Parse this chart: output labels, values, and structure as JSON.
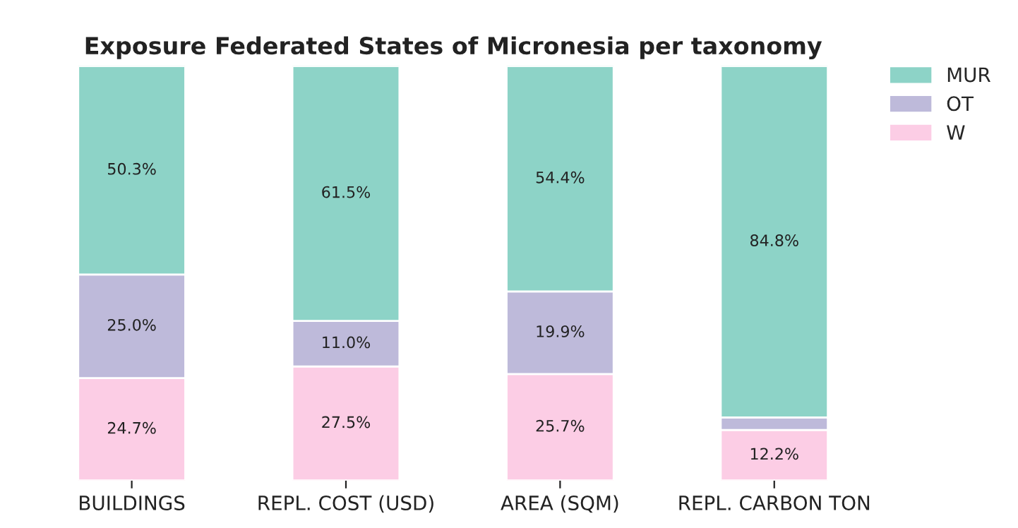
{
  "chart_data": {
    "type": "bar",
    "title": "Exposure Federated States of Micronesia per taxonomy",
    "categories": [
      "BUILDINGS",
      "REPL. COST (USD)",
      "AREA (SQM)",
      "REPL. CARBON TON"
    ],
    "stacked": true,
    "ylim": [
      0,
      100
    ],
    "tick_labels": "x",
    "grid": false,
    "legend": "top right",
    "series": [
      {
        "name": "W",
        "color": "#fccde5",
        "values": [
          24.7,
          27.5,
          25.7,
          12.2
        ],
        "value_labels": [
          "24.7%",
          "27.5%",
          "25.7%",
          "12.2%"
        ]
      },
      {
        "name": "OT",
        "color": "#bebada",
        "values": [
          25.0,
          11.0,
          19.9,
          3.0
        ],
        "value_labels": [
          "25.0%",
          "11.0%",
          "19.9%",
          null
        ]
      },
      {
        "name": "MUR",
        "color": "#8dd3c7",
        "values": [
          50.3,
          61.5,
          54.4,
          84.8
        ],
        "value_labels": [
          "50.3%",
          "61.5%",
          "54.4%",
          "84.8%"
        ]
      }
    ]
  }
}
